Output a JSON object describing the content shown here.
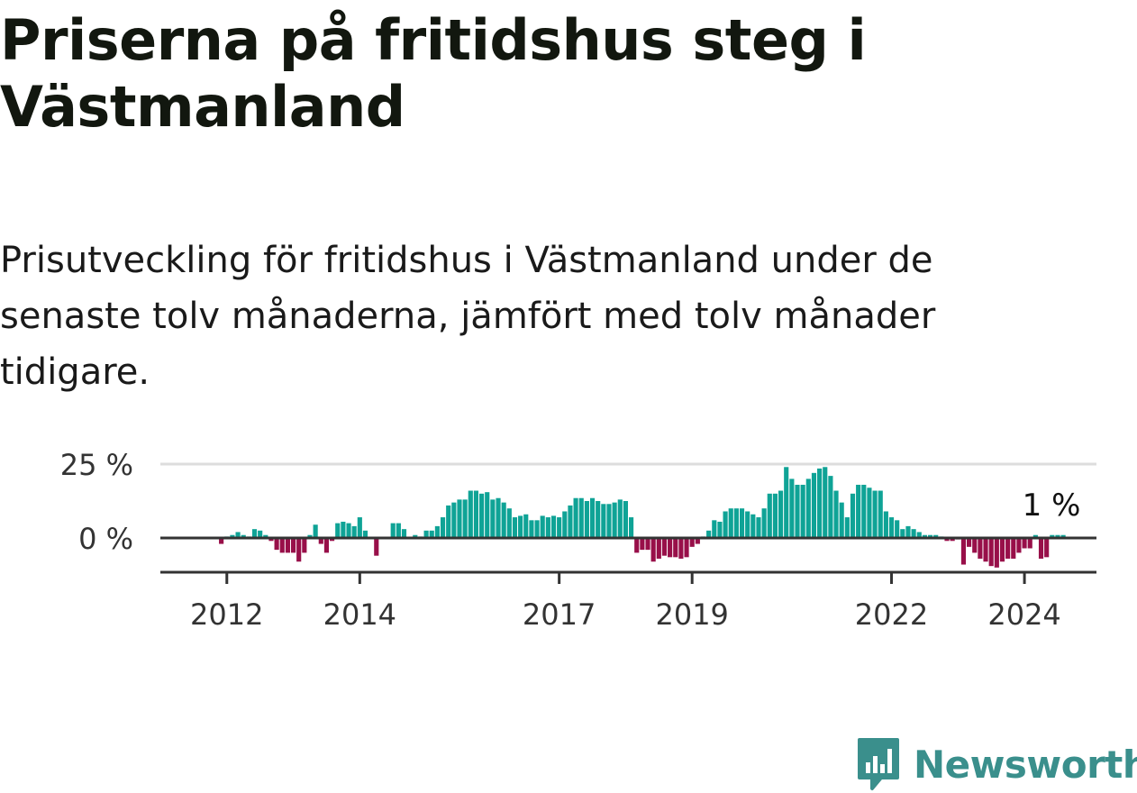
{
  "title": "Priserna på fritidshus steg i Västmanland",
  "subtitle": "Prisutveckling för fritidshus i Västmanland under de senaste tolv månaderna, jämfört med tolv månader tidigare.",
  "brand": {
    "name": "Newsworthy"
  },
  "colors": {
    "positive": "#0fa396",
    "negative": "#980f49",
    "zero_line": "#333333",
    "grid": "#dddddd",
    "brand": "#3a8f8c"
  },
  "chart_data": {
    "type": "bar",
    "x_start": "2011-01",
    "x_end": "2025-02",
    "first_bar": "2011-12",
    "ylim": [
      -12,
      27
    ],
    "y_ticks": [
      {
        "value": 0,
        "label": "0 %"
      },
      {
        "value": 25,
        "label": "25 %"
      }
    ],
    "x_ticks": [
      {
        "value": "2012-01",
        "label": "2012"
      },
      {
        "value": "2014-01",
        "label": "2014"
      },
      {
        "value": "2017-01",
        "label": "2017"
      },
      {
        "value": "2019-01",
        "label": "2019"
      },
      {
        "value": "2022-01",
        "label": "2022"
      },
      {
        "value": "2024-01",
        "label": "2024"
      }
    ],
    "last_label": "1 %",
    "values": [
      -2,
      0.5,
      1,
      2,
      1,
      0.5,
      3,
      2.5,
      1,
      -1,
      -4,
      -5,
      -5,
      -5,
      -8,
      -5,
      1,
      4.5,
      -2,
      -5,
      -1,
      5,
      5.5,
      5,
      4,
      7,
      2.5,
      0,
      -6,
      0,
      0,
      5,
      5,
      3,
      0,
      1,
      0.5,
      2.5,
      2.5,
      4,
      7,
      11,
      12,
      13,
      13,
      16,
      16,
      15,
      15.5,
      13,
      13.5,
      12,
      10,
      7,
      7.5,
      8,
      6,
      6,
      7.5,
      7,
      7.5,
      7,
      9,
      11,
      13.5,
      13.5,
      12.5,
      13.5,
      12.5,
      11.5,
      11.5,
      12,
      13,
      12.5,
      7,
      -5,
      -4,
      -4,
      -8,
      -7,
      -6,
      -6.5,
      -6.5,
      -7,
      -6.5,
      -3,
      -2,
      0.5,
      2.5,
      6,
      5.5,
      9,
      10,
      10,
      10,
      9,
      8,
      7,
      10,
      15,
      15,
      16,
      24,
      20,
      18,
      18,
      20,
      22,
      23.5,
      24,
      21,
      16,
      12,
      7,
      15,
      18,
      18,
      17,
      16,
      16,
      9,
      7,
      6,
      3,
      4,
      3,
      2,
      1,
      1,
      1,
      0.5,
      -1,
      -1,
      -0.5,
      -9,
      -3,
      -5,
      -7,
      -8,
      -9.5,
      -10,
      -8,
      -7,
      -7,
      -5,
      -3.5,
      -3.5,
      1,
      -7,
      -6.5,
      1,
      1,
      1
    ]
  }
}
